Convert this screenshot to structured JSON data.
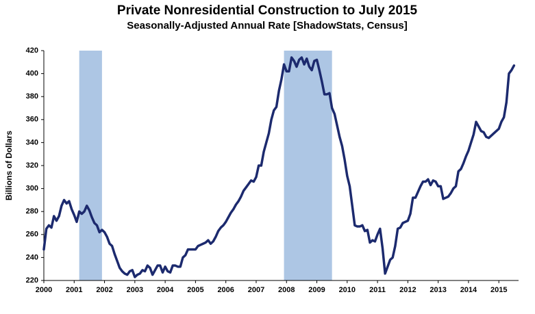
{
  "chart_data": {
    "type": "line",
    "title": "Private Nonresidential Construction to July 2015",
    "subtitle": "Seasonally-Adjusted Annual Rate [ShadowStats, Census]",
    "y_label": "Billions  of Dollars",
    "color": "#1c2a6e",
    "shade_color": "#adc6e4",
    "shaded_ranges": [
      [
        2001.167,
        2001.917
      ],
      [
        2007.917,
        2009.5
      ]
    ],
    "xlim": [
      2000,
      2015.65
    ],
    "xticks": [
      2000,
      2001,
      2002,
      2003,
      2004,
      2005,
      2006,
      2007,
      2008,
      2009,
      2010,
      2011,
      2012,
      2013,
      2014,
      2015
    ],
    "ylim": [
      220,
      420
    ],
    "yticks": [
      220,
      240,
      260,
      280,
      300,
      320,
      340,
      360,
      380,
      400,
      420
    ],
    "x": [
      2000,
      2000.083,
      2000.167,
      2000.25,
      2000.333,
      2000.417,
      2000.5,
      2000.583,
      2000.667,
      2000.75,
      2000.833,
      2000.917,
      2001,
      2001.083,
      2001.167,
      2001.25,
      2001.333,
      2001.417,
      2001.5,
      2001.583,
      2001.667,
      2001.75,
      2001.833,
      2001.917,
      2002,
      2002.083,
      2002.167,
      2002.25,
      2002.333,
      2002.417,
      2002.5,
      2002.583,
      2002.667,
      2002.75,
      2002.833,
      2002.917,
      2003,
      2003.083,
      2003.167,
      2003.25,
      2003.333,
      2003.417,
      2003.5,
      2003.583,
      2003.667,
      2003.75,
      2003.833,
      2003.917,
      2004,
      2004.083,
      2004.167,
      2004.25,
      2004.333,
      2004.417,
      2004.5,
      2004.583,
      2004.667,
      2004.75,
      2004.833,
      2004.917,
      2005,
      2005.083,
      2005.167,
      2005.25,
      2005.333,
      2005.417,
      2005.5,
      2005.583,
      2005.667,
      2005.75,
      2005.833,
      2005.917,
      2006,
      2006.083,
      2006.167,
      2006.25,
      2006.333,
      2006.417,
      2006.5,
      2006.583,
      2006.667,
      2006.75,
      2006.833,
      2006.917,
      2007,
      2007.083,
      2007.167,
      2007.25,
      2007.333,
      2007.417,
      2007.5,
      2007.583,
      2007.667,
      2007.75,
      2007.833,
      2007.917,
      2008,
      2008.083,
      2008.167,
      2008.25,
      2008.333,
      2008.417,
      2008.5,
      2008.583,
      2008.667,
      2008.75,
      2008.833,
      2008.917,
      2009,
      2009.083,
      2009.167,
      2009.25,
      2009.333,
      2009.417,
      2009.5,
      2009.583,
      2009.667,
      2009.75,
      2009.833,
      2009.917,
      2010,
      2010.083,
      2010.167,
      2010.25,
      2010.333,
      2010.417,
      2010.5,
      2010.583,
      2010.667,
      2010.75,
      2010.833,
      2010.917,
      2011,
      2011.083,
      2011.167,
      2011.25,
      2011.333,
      2011.417,
      2011.5,
      2011.583,
      2011.667,
      2011.75,
      2011.833,
      2011.917,
      2012,
      2012.083,
      2012.167,
      2012.25,
      2012.333,
      2012.417,
      2012.5,
      2012.583,
      2012.667,
      2012.75,
      2012.833,
      2012.917,
      2013,
      2013.083,
      2013.167,
      2013.25,
      2013.333,
      2013.417,
      2013.5,
      2013.583,
      2013.667,
      2013.75,
      2013.833,
      2013.917,
      2014,
      2014.083,
      2014.167,
      2014.25,
      2014.333,
      2014.417,
      2014.5,
      2014.583,
      2014.667,
      2014.75,
      2014.833,
      2014.917,
      2015,
      2015.083,
      2015.167,
      2015.25,
      2015.333,
      2015.417,
      2015.5
    ],
    "values": [
      247,
      265,
      268,
      266,
      276,
      272,
      276,
      285,
      290,
      287,
      289,
      282,
      277,
      271,
      280,
      278,
      280,
      285,
      281,
      275,
      270,
      268,
      262,
      264,
      262,
      258,
      252,
      250,
      243,
      237,
      231,
      228,
      226,
      225,
      228,
      229,
      223,
      225,
      226,
      229,
      228,
      233,
      231,
      225,
      229,
      233,
      233,
      227,
      232,
      228,
      227,
      233,
      233,
      232,
      232,
      240,
      242,
      247,
      247,
      247,
      247,
      250,
      251,
      252,
      253,
      255,
      252,
      254,
      258,
      263,
      266,
      268,
      271,
      275,
      279,
      282,
      286,
      289,
      293,
      298,
      301,
      304,
      307,
      306,
      310,
      320,
      320,
      332,
      340,
      348,
      360,
      368,
      371,
      385,
      395,
      408,
      402,
      402,
      414,
      411,
      406,
      412,
      414,
      408,
      413,
      406,
      403,
      411,
      412,
      403,
      393,
      382,
      382,
      383,
      370,
      365,
      355,
      345,
      337,
      325,
      311,
      302,
      285,
      268,
      267,
      267,
      268,
      263,
      264,
      253,
      255,
      254,
      260,
      265,
      248,
      226,
      232,
      238,
      240,
      250,
      265,
      266,
      270,
      271,
      272,
      278,
      292,
      292,
      297,
      302,
      306,
      306,
      308,
      303,
      307,
      306,
      302,
      302,
      291,
      292,
      293,
      296,
      300,
      302,
      315,
      317,
      322,
      328,
      333,
      340,
      347,
      358,
      354,
      350,
      349,
      345,
      344,
      346,
      348,
      350,
      352,
      358,
      362,
      375,
      400,
      403,
      407
    ]
  }
}
